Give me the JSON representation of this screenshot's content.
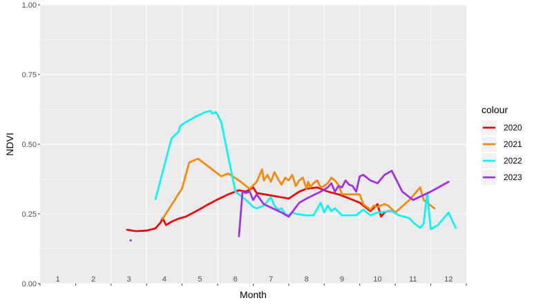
{
  "chart_data": {
    "type": "line",
    "title": "",
    "xlabel": "Month",
    "ylabel": "NDVI",
    "ylim": [
      0,
      1
    ],
    "xlim": [
      0.5,
      12.5
    ],
    "y_ticks": [
      "0.00",
      "0.25",
      "0.50",
      "0.75",
      "1.00"
    ],
    "y_tick_values": [
      0,
      0.25,
      0.5,
      0.75,
      1
    ],
    "x_tick_labels": [
      "1",
      "2",
      "3",
      "4",
      "5",
      "6",
      "7",
      "8",
      "9",
      "10",
      "11",
      "12"
    ],
    "grid": true,
    "legend": {
      "title": "colour",
      "position": "right"
    },
    "series": [
      {
        "name": "2020",
        "color": "#e8090c",
        "x": [
          2.95,
          3.2,
          3.5,
          3.75,
          3.9,
          3.95,
          4.05,
          4.2,
          4.4,
          4.6,
          4.9,
          5.2,
          5.5,
          5.8,
          6.1,
          6.3,
          6.5,
          6.6,
          7.0,
          7.5,
          7.8,
          8.0,
          8.3,
          8.6,
          8.9,
          9.2,
          9.5,
          9.8,
          10.0,
          10.1,
          10.2,
          10.3,
          10.4
        ],
        "y": [
          0.193,
          0.188,
          0.19,
          0.198,
          0.22,
          0.235,
          0.21,
          0.222,
          0.233,
          0.24,
          0.26,
          0.282,
          0.302,
          0.32,
          0.335,
          0.33,
          0.345,
          0.325,
          0.316,
          0.305,
          0.33,
          0.34,
          0.345,
          0.33,
          0.32,
          0.306,
          0.29,
          0.26,
          0.285,
          0.24,
          0.255,
          0.26,
          0.26
        ]
      },
      {
        "name": "2021",
        "color": "#f28a0d",
        "x": [
          3.95,
          4.5,
          4.7,
          4.95,
          5.6,
          5.8,
          6.1,
          6.4,
          6.6,
          6.75,
          6.8,
          6.9,
          7.0,
          7.1,
          7.2,
          7.3,
          7.4,
          7.5,
          7.6,
          7.7,
          7.8,
          7.9,
          8.0,
          8.05,
          8.1,
          8.2,
          8.3,
          8.4,
          8.5,
          8.6,
          8.7,
          8.8,
          8.9,
          9.0,
          9.1,
          9.2,
          9.3,
          9.4,
          9.5,
          9.6,
          9.7,
          9.8,
          9.9,
          10.0,
          10.2,
          10.3,
          10.5,
          10.9,
          11.2,
          11.3,
          11.6
        ],
        "y": [
          0.232,
          0.342,
          0.435,
          0.448,
          0.385,
          0.395,
          0.37,
          0.34,
          0.365,
          0.41,
          0.37,
          0.39,
          0.365,
          0.4,
          0.375,
          0.355,
          0.38,
          0.37,
          0.39,
          0.35,
          0.37,
          0.38,
          0.34,
          0.365,
          0.345,
          0.36,
          0.37,
          0.345,
          0.35,
          0.36,
          0.38,
          0.37,
          0.355,
          0.32,
          0.32,
          0.32,
          0.32,
          0.32,
          0.32,
          0.285,
          0.275,
          0.265,
          0.28,
          0.275,
          0.285,
          0.28,
          0.255,
          0.3,
          0.345,
          0.3,
          0.27
        ]
      },
      {
        "name": "2022",
        "color": "#10f1f3",
        "x": [
          3.75,
          4.2,
          4.4,
          4.45,
          4.55,
          4.9,
          5.15,
          5.3,
          5.35,
          5.45,
          5.5,
          5.6,
          6.0,
          6.3,
          6.5,
          6.6,
          6.8,
          6.9,
          7.0,
          7.1,
          7.2,
          7.3,
          7.4,
          7.5,
          7.6,
          7.7,
          8.0,
          8.2,
          8.4,
          8.5,
          8.6,
          8.7,
          8.8,
          9.0,
          9.2,
          9.4,
          9.6,
          9.8,
          10.0,
          10.4,
          10.6,
          10.9,
          11.0,
          11.2,
          11.3,
          11.4,
          11.5,
          11.7,
          12.0,
          12.2
        ],
        "y": [
          0.303,
          0.52,
          0.545,
          0.565,
          0.575,
          0.6,
          0.615,
          0.62,
          0.61,
          0.615,
          0.605,
          0.58,
          0.33,
          0.3,
          0.275,
          0.27,
          0.28,
          0.295,
          0.31,
          0.28,
          0.265,
          0.27,
          0.25,
          0.245,
          0.255,
          0.25,
          0.245,
          0.245,
          0.29,
          0.255,
          0.28,
          0.26,
          0.27,
          0.245,
          0.245,
          0.245,
          0.265,
          0.245,
          0.255,
          0.26,
          0.245,
          0.235,
          0.22,
          0.2,
          0.215,
          0.325,
          0.195,
          0.21,
          0.255,
          0.2
        ]
      },
      {
        "name": "2023",
        "color": "#a030e8",
        "x": [
          6.1,
          6.2,
          6.3,
          6.4,
          6.5,
          6.6,
          6.8,
          7.3,
          7.5,
          7.8,
          8.0,
          8.4,
          8.6,
          8.7,
          8.8,
          8.9,
          9.0,
          9.1,
          9.2,
          9.3,
          9.4,
          9.5,
          9.6,
          9.8,
          10.0,
          10.2,
          10.4,
          10.7,
          11.0,
          11.5,
          12.0
        ],
        "y": [
          0.17,
          0.33,
          0.325,
          0.33,
          0.3,
          0.32,
          0.285,
          0.255,
          0.24,
          0.29,
          0.305,
          0.33,
          0.345,
          0.36,
          0.33,
          0.35,
          0.345,
          0.37,
          0.355,
          0.35,
          0.33,
          0.385,
          0.39,
          0.37,
          0.36,
          0.39,
          0.405,
          0.33,
          0.3,
          0.33,
          0.365
        ]
      }
    ],
    "points": [
      {
        "series": "2023",
        "x": 3.05,
        "y": 0.155
      }
    ]
  }
}
